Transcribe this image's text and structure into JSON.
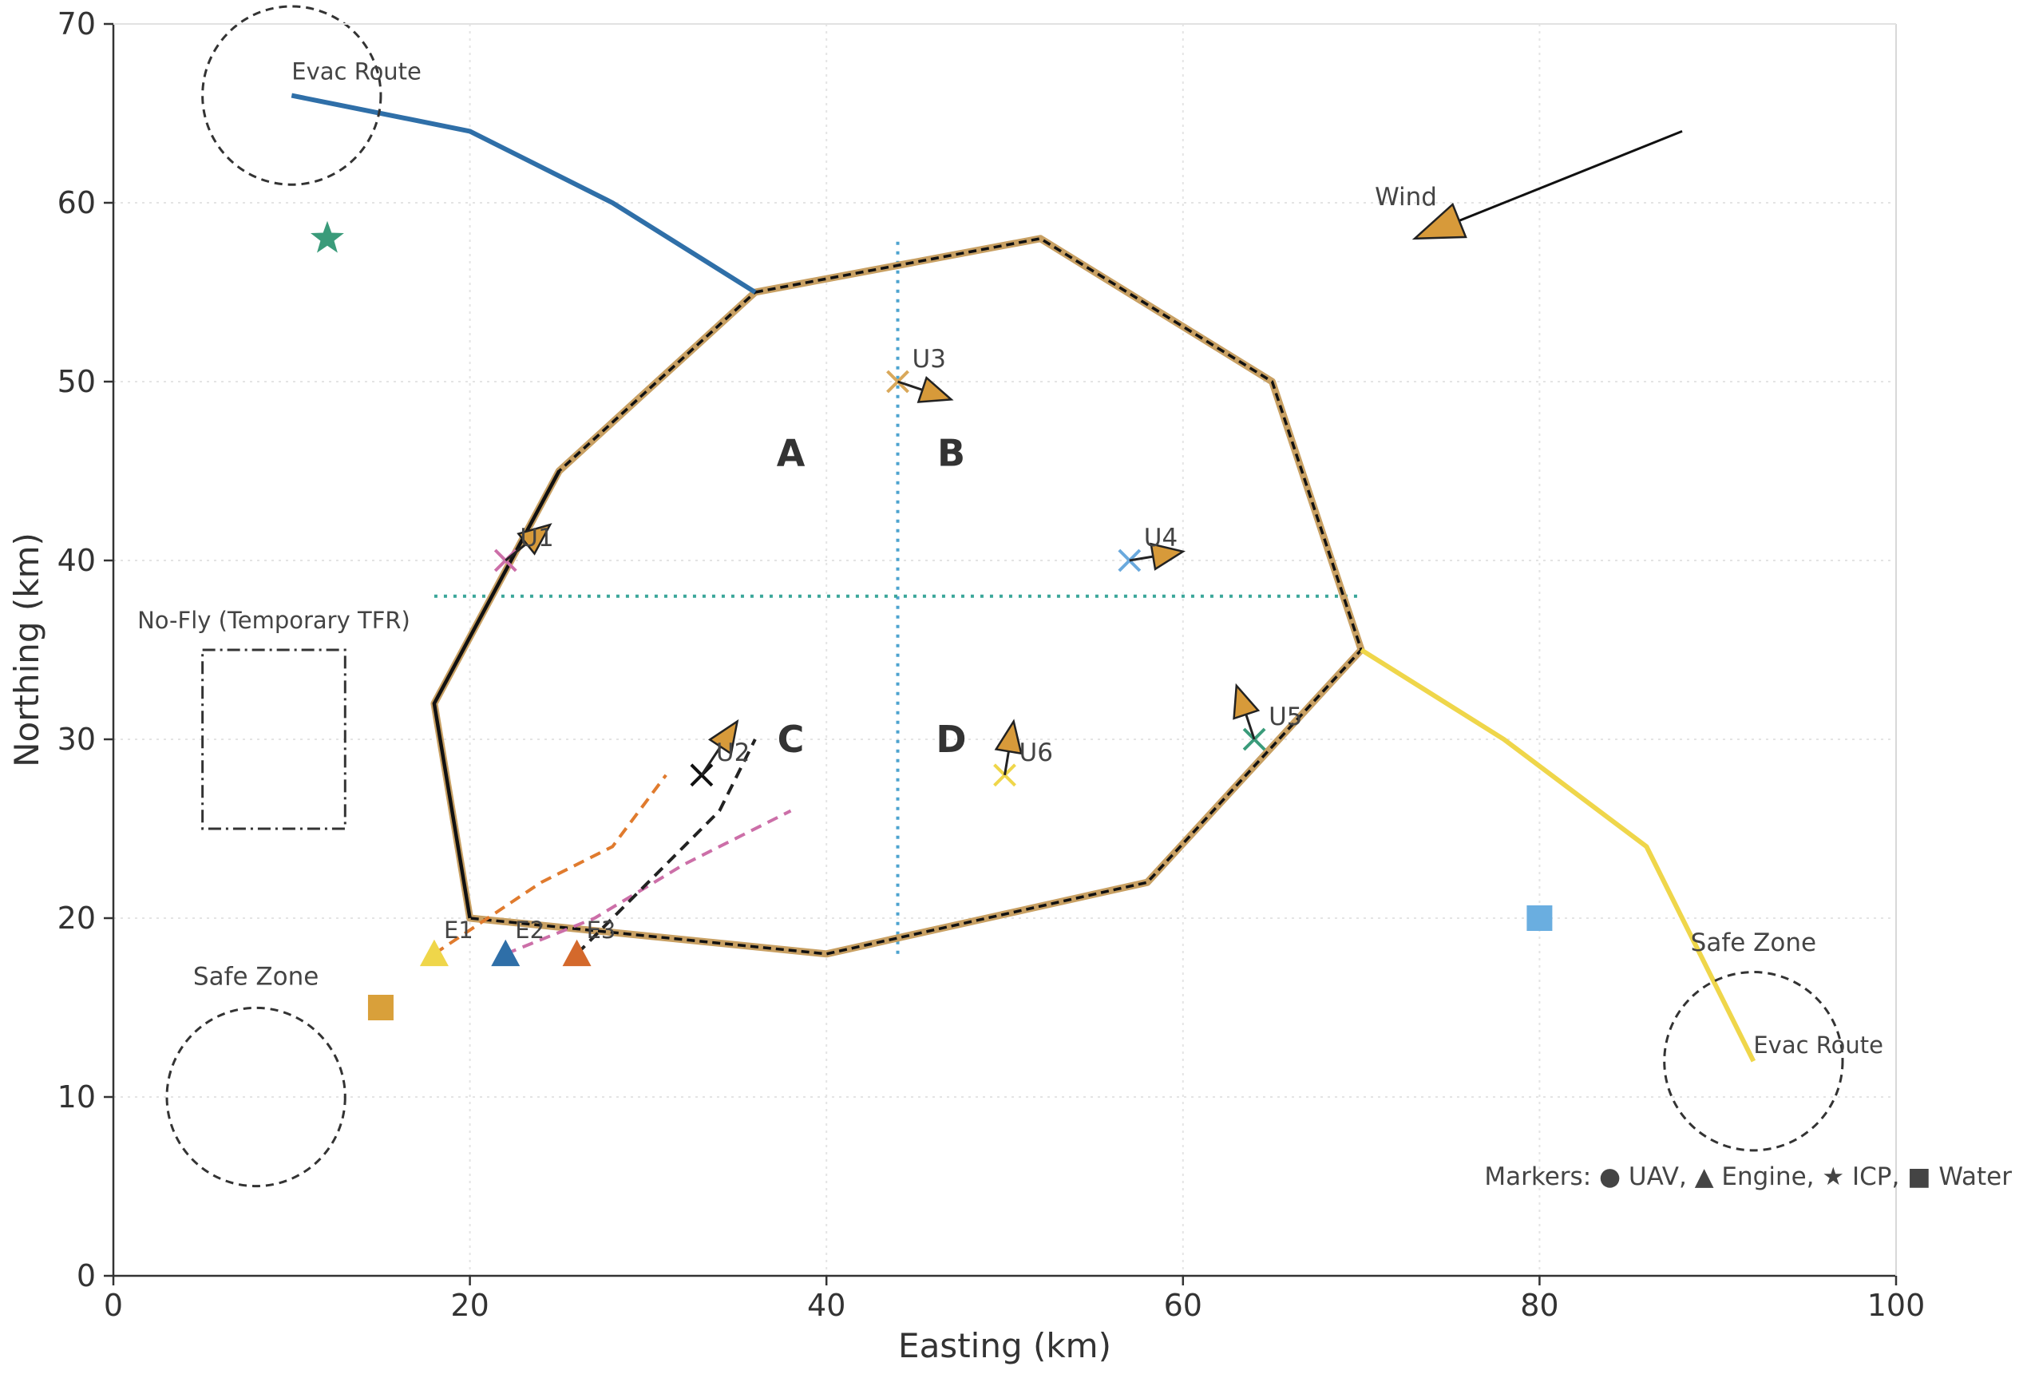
{
  "chart_data": {
    "type": "scatter",
    "title": "",
    "xlabel": "Easting (km)",
    "ylabel": "Northing (km)",
    "xlim": [
      0,
      100
    ],
    "ylim": [
      0,
      70
    ],
    "xticks": [
      "0",
      "20",
      "40",
      "60",
      "80",
      "100"
    ],
    "yticks": [
      "0",
      "10",
      "20",
      "30",
      "40",
      "50",
      "60",
      "70"
    ],
    "grid": true,
    "fire_perimeter": {
      "points": [
        [
          36,
          55
        ],
        [
          52,
          58
        ],
        [
          65,
          50
        ],
        [
          70,
          35
        ],
        [
          58,
          22
        ],
        [
          40,
          18
        ],
        [
          20,
          20
        ],
        [
          18,
          32
        ],
        [
          25,
          45
        ]
      ],
      "edge_color": "#111111",
      "fill_color": "#c8a063"
    },
    "divisions": {
      "vertical_x": 44,
      "vertical_range": [
        18,
        58
      ],
      "horizontal_y": 38,
      "horizontal_range": [
        18,
        70
      ],
      "color": "#4da3cf"
    },
    "quadrant_labels": [
      {
        "text": "A",
        "x": 38,
        "y": 46
      },
      {
        "text": "B",
        "x": 47,
        "y": 46
      },
      {
        "text": "C",
        "x": 38,
        "y": 30
      },
      {
        "text": "D",
        "x": 47,
        "y": 30
      }
    ],
    "evac_routes": [
      {
        "label": "Evac Route",
        "color": "#2f6fa8",
        "points": [
          [
            10,
            66
          ],
          [
            20,
            64
          ],
          [
            28,
            60
          ],
          [
            36,
            55
          ]
        ]
      },
      {
        "label": "Evac Route",
        "color": "#efd64a",
        "points": [
          [
            70,
            35
          ],
          [
            78,
            30
          ],
          [
            86,
            24
          ],
          [
            92,
            12
          ]
        ]
      }
    ],
    "safe_zones": [
      {
        "label": "Safe Zone",
        "x": 8,
        "y": 10,
        "r": 5
      },
      {
        "label": "Safe Zone",
        "x": 92,
        "y": 12,
        "r": 5
      }
    ],
    "evac_circle": {
      "x": 10,
      "y": 66,
      "r": 5
    },
    "no_fly_zone": {
      "label": "No-Fly (Temporary TFR)",
      "x0": 5,
      "x1": 13,
      "y0": 25,
      "y1": 35
    },
    "wind": {
      "label": "Wind",
      "from": [
        88,
        64
      ],
      "to": [
        73,
        58
      ]
    },
    "uavs": [
      {
        "label": "U1",
        "x": 22,
        "y": 40,
        "dx": 2.5,
        "dy": 2,
        "color": "#cc6fa8"
      },
      {
        "label": "U2",
        "x": 33,
        "y": 28,
        "dx": 2,
        "dy": 3,
        "color": "#111111"
      },
      {
        "label": "U3",
        "x": 44,
        "y": 50,
        "dx": 3,
        "dy": -1,
        "color": "#d9a85a"
      },
      {
        "label": "U4",
        "x": 57,
        "y": 40,
        "dx": 3,
        "dy": 0.5,
        "color": "#6aa9dd"
      },
      {
        "label": "U5",
        "x": 64,
        "y": 30,
        "dx": -1,
        "dy": 3,
        "color": "#3a9b7a"
      },
      {
        "label": "U6",
        "x": 50,
        "y": 28,
        "dx": 0.5,
        "dy": 3,
        "color": "#efd64a"
      }
    ],
    "engines": [
      {
        "label": "E1",
        "x": 18,
        "y": 18,
        "color": "#efd64a",
        "path_color": "#e07b2e",
        "path": [
          [
            18,
            18
          ],
          [
            24,
            22
          ],
          [
            28,
            24
          ],
          [
            31,
            28
          ]
        ]
      },
      {
        "label": "E2",
        "x": 22,
        "y": 18,
        "color": "#2f6fa8",
        "path_color": "#cc6fa8",
        "path": [
          [
            22,
            18
          ],
          [
            27,
            20
          ],
          [
            32,
            23
          ],
          [
            38,
            26
          ]
        ]
      },
      {
        "label": "E3",
        "x": 26,
        "y": 18,
        "color": "#d4692c",
        "path_color": "#222222",
        "path": [
          [
            26,
            18
          ],
          [
            30,
            22
          ],
          [
            34,
            26
          ],
          [
            36,
            30
          ]
        ]
      }
    ],
    "icp": {
      "x": 12,
      "y": 58,
      "color": "#3a9b7a"
    },
    "water": [
      {
        "x": 15,
        "y": 15,
        "color": "#d9a03a"
      },
      {
        "x": 80,
        "y": 20,
        "color": "#6aaee0"
      }
    ],
    "legend_note": "Markers: ● UAV, ▲ Engine, ★ ICP, ■ Water"
  }
}
